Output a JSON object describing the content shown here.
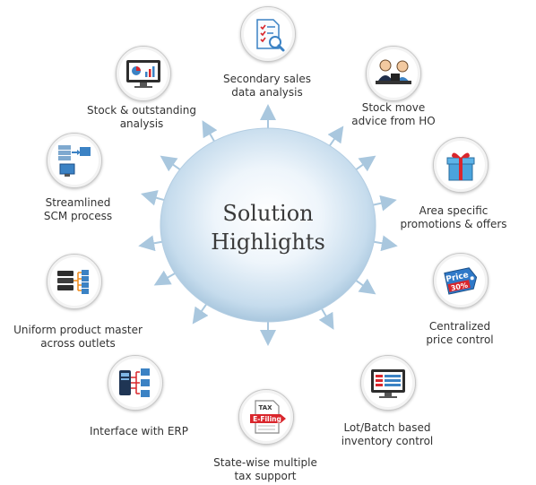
{
  "center": {
    "line1": "Solution",
    "line2": "Highlights"
  },
  "nodes": [
    {
      "id": "secondary-sales",
      "icon": "checklist-magnifier-icon",
      "lines": [
        "Secondary sales",
        "data analysis"
      ]
    },
    {
      "id": "stock-move",
      "icon": "people-at-desk-icon",
      "lines": [
        "Stock move",
        "advice from HO"
      ]
    },
    {
      "id": "area-promotions",
      "icon": "gift-box-icon",
      "lines": [
        "Area specific",
        "promotions & offers"
      ]
    },
    {
      "id": "price-control",
      "icon": "price-tag-icon",
      "lines": [
        "Centralized",
        "price control"
      ],
      "tag_word": "Price",
      "tag_pct": "30%"
    },
    {
      "id": "lot-batch",
      "icon": "monitor-table-icon",
      "lines": [
        "Lot/Batch based",
        "inventory control"
      ]
    },
    {
      "id": "tax-support",
      "icon": "tax-efiling-icon",
      "lines": [
        "State-wise multiple",
        "tax support"
      ],
      "doc_word": "TAX",
      "badge_word": "E-Filing"
    },
    {
      "id": "erp-interface",
      "icon": "device-network-icon",
      "lines": [
        "Interface with ERP"
      ]
    },
    {
      "id": "product-master",
      "icon": "database-network-icon",
      "lines": [
        "Uniform product master",
        "across outlets"
      ]
    },
    {
      "id": "scm-process",
      "icon": "server-computer-icon",
      "lines": [
        "Streamlined",
        "SCM process"
      ]
    },
    {
      "id": "stock-outstanding",
      "icon": "monitor-chart-icon",
      "lines": [
        "Stock & outstanding",
        "analysis"
      ]
    }
  ],
  "colors": {
    "accent_blue": "#3b82c4",
    "arrow": "#a9c7de",
    "sphere_light": "#eef5fb",
    "sphere_dark": "#b9d4e8",
    "red": "#d9262c"
  }
}
